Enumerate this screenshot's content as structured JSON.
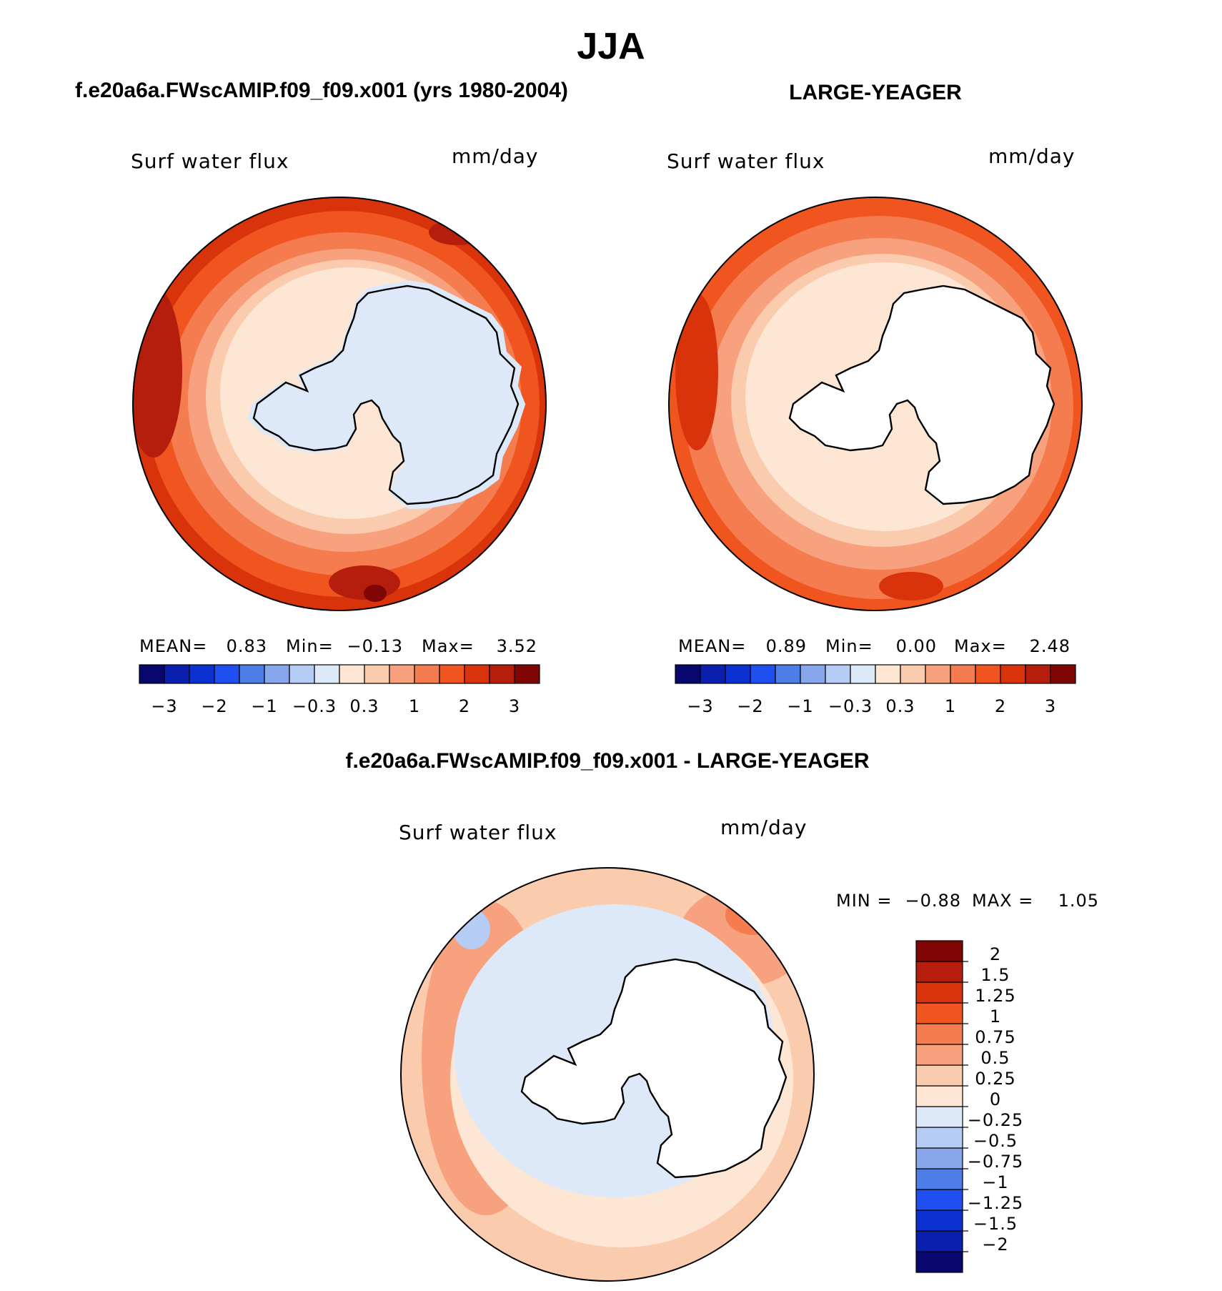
{
  "figure": {
    "season": "JJA",
    "panels": [
      {
        "id": "model",
        "header": "f.e20a6a.FWscAMIP.f09_f09.x001 (yrs 1980-2004)",
        "variable": "Surf water flux",
        "units": "mm/day",
        "stats": {
          "mean_label": "MEAN=",
          "mean": "0.83",
          "min_label": "Min=",
          "min": "−0.13",
          "max_label": "Max=",
          "max": "3.52"
        }
      },
      {
        "id": "obs",
        "header": "LARGE-YEAGER",
        "variable": "Surf water flux",
        "units": "mm/day",
        "stats": {
          "mean_label": "MEAN=",
          "mean": "0.89",
          "min_label": "Min=",
          "min": "0.00",
          "max_label": "Max=",
          "max": "2.48"
        }
      },
      {
        "id": "diff",
        "header": "f.e20a6a.FWscAMIP.f09_f09.x001 - LARGE-YEAGER",
        "variable": "Surf water flux",
        "units": "mm/day",
        "stats": {
          "min_label": "MIN =",
          "min": "−0.88",
          "max_label": "MAX =",
          "max": "1.05"
        }
      }
    ],
    "colorbar_abs": {
      "colors": [
        "#08076e",
        "#0a1fad",
        "#0b31d1",
        "#1f4ff0",
        "#4f7de8",
        "#87a6ec",
        "#b5ccf5",
        "#dde9f9",
        "#fde6d4",
        "#fbcbae",
        "#f8a17e",
        "#f57c4f",
        "#f0541f",
        "#d8330b",
        "#b51e0c",
        "#800606"
      ],
      "tick_labels": [
        "−3",
        "−2",
        "−1",
        "−0.3",
        "0.3",
        "1",
        "2",
        "3"
      ]
    },
    "colorbar_diff": {
      "colors": [
        "#08076e",
        "#0a1fad",
        "#0b31d1",
        "#1f4ff0",
        "#4f7de8",
        "#87a6ec",
        "#b5ccf5",
        "#dde9f9",
        "#fde6d4",
        "#fbcbae",
        "#f8a17e",
        "#f57c4f",
        "#f0541f",
        "#d8330b",
        "#b51e0c",
        "#800606"
      ],
      "tick_labels": [
        "−2",
        "−1.5",
        "−1.25",
        "−1",
        "−0.75",
        "−0.5",
        "−0.25",
        "0",
        "0.25",
        "0.5",
        "0.75",
        "1",
        "1.25",
        "1.5",
        "2"
      ]
    }
  }
}
